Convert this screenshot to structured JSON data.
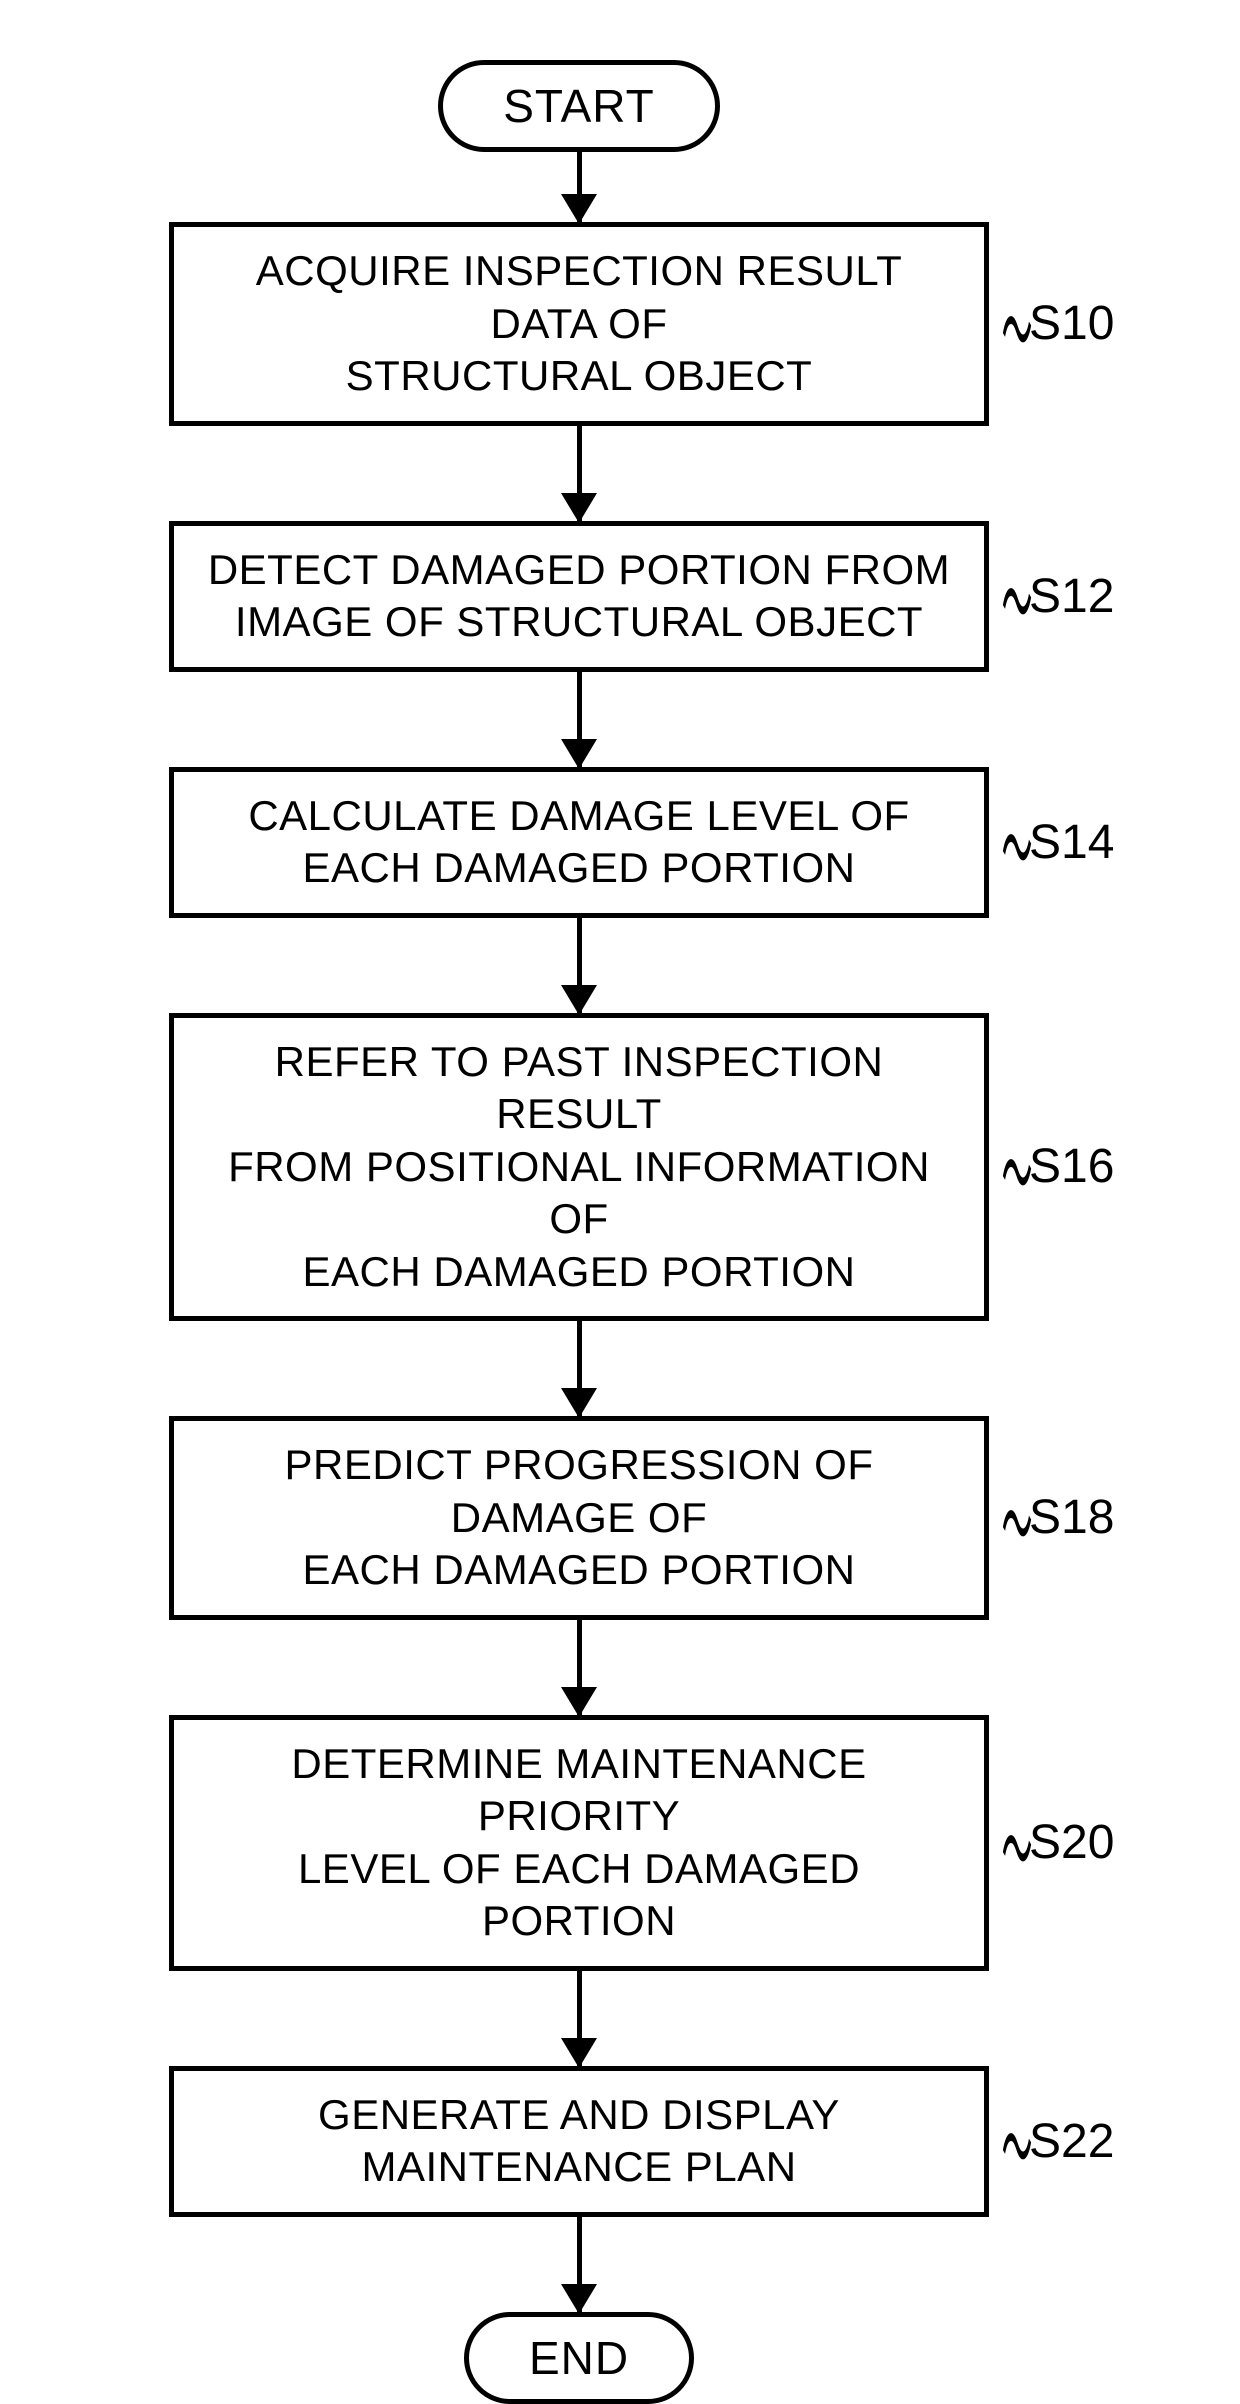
{
  "flowchart": {
    "type": "flowchart",
    "background_color": "#ffffff",
    "stroke_color": "#000000",
    "stroke_width": 5,
    "font_family": "Arial Narrow, Arial, sans-serif",
    "terminal_fontsize": 46,
    "process_fontsize": 42,
    "label_fontsize": 48,
    "process_width": 820,
    "arrow_length_short": 70,
    "arrow_length_long": 95,
    "arrowhead_width": 36,
    "arrowhead_height": 30,
    "terminal_border_radius": 60,
    "start": "START",
    "end": "END",
    "steps": [
      {
        "id": "S10",
        "text": "ACQUIRE INSPECTION RESULT DATA OF\nSTRUCTURAL OBJECT"
      },
      {
        "id": "S12",
        "text": "DETECT DAMAGED PORTION FROM\nIMAGE OF STRUCTURAL OBJECT"
      },
      {
        "id": "S14",
        "text": "CALCULATE DAMAGE LEVEL OF\nEACH DAMAGED PORTION"
      },
      {
        "id": "S16",
        "text": "REFER TO PAST INSPECTION RESULT\nFROM POSITIONAL INFORMATION OF\nEACH DAMAGED PORTION"
      },
      {
        "id": "S18",
        "text": "PREDICT PROGRESSION OF DAMAGE OF\nEACH DAMAGED PORTION"
      },
      {
        "id": "S20",
        "text": "DETERMINE MAINTENANCE PRIORITY\nLEVEL OF EACH DAMAGED PORTION"
      },
      {
        "id": "S22",
        "text": "GENERATE AND DISPLAY\nMAINTENANCE PLAN"
      }
    ]
  }
}
